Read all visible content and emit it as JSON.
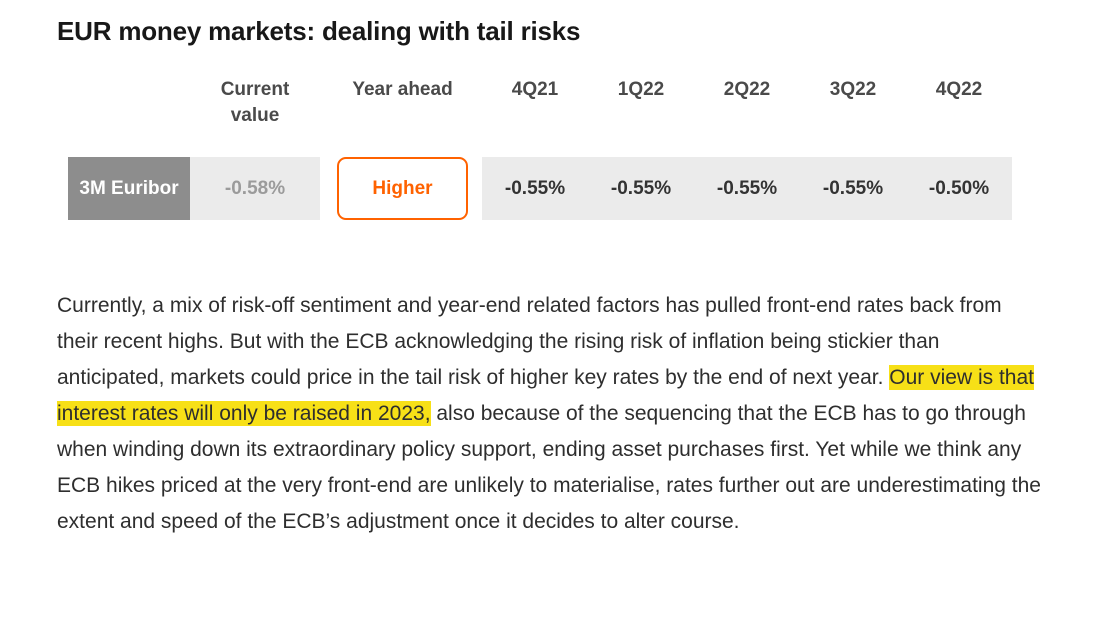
{
  "title": "EUR money markets: dealing with tail risks",
  "table": {
    "headers": {
      "current": "Current value",
      "year_ahead": "Year ahead",
      "q1": "4Q21",
      "q2": "1Q22",
      "q3": "2Q22",
      "q4": "3Q22",
      "q5": "4Q22"
    },
    "row": {
      "label": "3M Euribor",
      "current_value": "-0.58%",
      "year_ahead": "Higher",
      "values": [
        "-0.55%",
        "-0.55%",
        "-0.55%",
        "-0.55%",
        "-0.50%"
      ]
    }
  },
  "paragraph": {
    "before_highlight": "Currently, a mix of risk-off sentiment and year-end related factors has pulled front-end rates back from their recent highs. But with the ECB acknowledging the rising risk of inflation being stickier than anticipated, markets could price in the tail risk of higher key rates by the end of next year. ",
    "highlight": "Our view is that interest rates will only be raised in 2023,",
    "after_highlight": " also because of the sequencing that the ECB has to go through when winding down its extraordinary policy support, ending asset purchases first. Yet while we think any ECB hikes priced at the very front-end are unlikely to materialise, rates further out are underestimating the extent and speed of the ECB’s adjustment once it decides to alter course."
  },
  "colors": {
    "accent_orange": "#ff6200",
    "highlight_yellow": "#f7e017",
    "cell_gray": "#ebebeb",
    "row_label_gray": "#8d8d8d"
  }
}
